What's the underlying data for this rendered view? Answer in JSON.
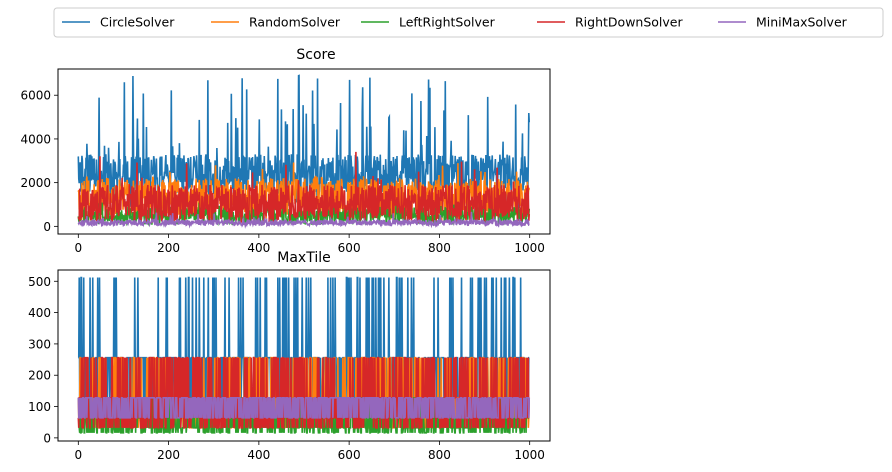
{
  "legend": {
    "placement": "top, above plots, single row"
  },
  "chart_data": [
    {
      "type": "line",
      "title": "Score",
      "xlabel": "",
      "ylabel": "",
      "xlim": [
        -45,
        1045
      ],
      "ylim": [
        -350,
        7200
      ],
      "x_ticks": [
        0,
        200,
        400,
        600,
        800,
        1000
      ],
      "y_ticks": [
        0,
        2000,
        4000,
        6000
      ],
      "grid": false,
      "n_points": 1000,
      "series": [
        {
          "name": "CircleSolver",
          "color": "#1f77b4",
          "typical_range": [
            1500,
            3300
          ],
          "peak_max": 6950,
          "summary": "noisy, mostly 1500-3300, frequent spikes 4000-6900"
        },
        {
          "name": "RandomSolver",
          "color": "#ff7f0e",
          "typical_range": [
            500,
            2200
          ],
          "peak_max": 3000,
          "summary": "noisy, mostly 500-2200"
        },
        {
          "name": "LeftRightSolver",
          "color": "#2ca02c",
          "typical_range": [
            150,
            900
          ],
          "peak_max": 1100,
          "summary": "noisy, mostly 150-900"
        },
        {
          "name": "RightDownSolver",
          "color": "#d62728",
          "typical_range": [
            300,
            1900
          ],
          "peak_max": 3500,
          "summary": "noisy, mostly 300-1900"
        },
        {
          "name": "MiniMaxSolver",
          "color": "#9467bd",
          "typical_range": [
            50,
            300
          ],
          "peak_max": 700,
          "summary": "low, mostly 50-300"
        }
      ]
    },
    {
      "type": "line",
      "title": "MaxTile",
      "xlabel": "",
      "ylabel": "",
      "xlim": [
        -45,
        1045
      ],
      "ylim": [
        -10,
        536
      ],
      "x_ticks": [
        0,
        200,
        400,
        600,
        800,
        1000
      ],
      "y_ticks": [
        0,
        100,
        200,
        300,
        400,
        500
      ],
      "grid": false,
      "n_points": 1000,
      "series": [
        {
          "name": "CircleSolver",
          "color": "#1f77b4",
          "levels": [
            128,
            256,
            512
          ],
          "summary": "mostly 128/256, frequent 512"
        },
        {
          "name": "RandomSolver",
          "color": "#ff7f0e",
          "levels": [
            32,
            64,
            128,
            256
          ],
          "summary": "32-256"
        },
        {
          "name": "LeftRightSolver",
          "color": "#2ca02c",
          "levels": [
            16,
            32,
            64,
            128
          ],
          "summary": "16-128"
        },
        {
          "name": "RightDownSolver",
          "color": "#d62728",
          "levels": [
            32,
            64,
            128,
            256
          ],
          "summary": "32-256"
        },
        {
          "name": "MiniMaxSolver",
          "color": "#9467bd",
          "levels": [
            64,
            128
          ],
          "summary": "64-128"
        }
      ]
    }
  ]
}
